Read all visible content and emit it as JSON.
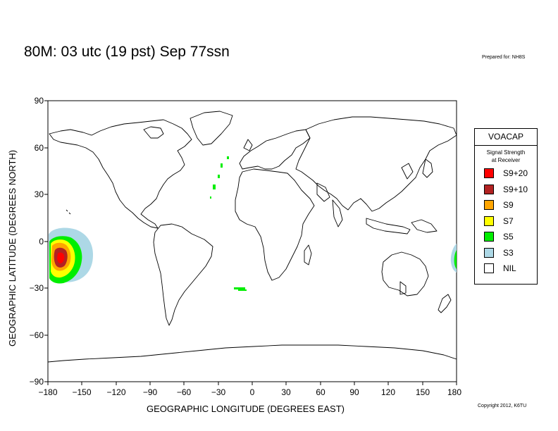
{
  "title": "80M:  03 utc (19 pst) Sep 77ssn",
  "prepared_for": "Prepared for: NH8S",
  "copyright": "Copyright 2012, K6TU",
  "x_axis": {
    "label": "GEOGRAPHIC LONGITUDE (DEGREES EAST)",
    "ticks": [
      "−180",
      "−150",
      "−120",
      "−90",
      "−60",
      "−30",
      "0",
      "30",
      "60",
      "90",
      "120",
      "150",
      "180"
    ]
  },
  "y_axis": {
    "label": "GEOGRAPHIC LATITUDE (DEGREES NORTH)",
    "ticks": [
      "90",
      "60",
      "30",
      "0",
      "−30",
      "−60",
      "−90"
    ]
  },
  "legend": {
    "title": "VOACAP",
    "subtitle_line1": "Signal Strength",
    "subtitle_line2": "at Receiver",
    "items": [
      {
        "label": "S9+20",
        "color": "#ff0000"
      },
      {
        "label": "S9+10",
        "color": "#b22222"
      },
      {
        "label": "S9",
        "color": "#ffa500"
      },
      {
        "label": "S7",
        "color": "#ffff00"
      },
      {
        "label": "S5",
        "color": "#00ee00"
      },
      {
        "label": "S3",
        "color": "#add8e6"
      },
      {
        "label": "NIL",
        "color": "#ffffff"
      }
    ]
  },
  "colors": {
    "coastline": "#000000",
    "coverage_s3": "#add8e6",
    "coverage_s5": "#00ee00",
    "coverage_s7": "#ffff00",
    "coverage_s9": "#ffa500",
    "coverage_s9p10": "#b22222",
    "coverage_s9p20": "#ff0000"
  }
}
